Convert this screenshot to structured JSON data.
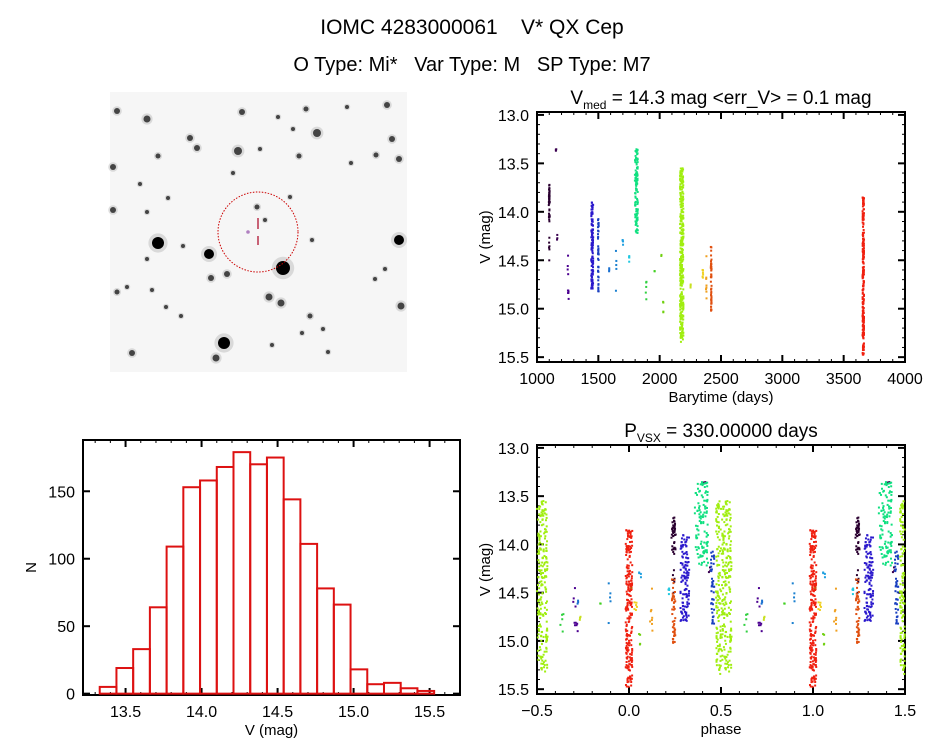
{
  "header": {
    "title": "IOMC 4283000061    V* QX Cep",
    "subtitle": "O Type: Mi*   Var Type: M   SP Type: M7"
  },
  "chart_data": [
    {
      "id": "histogram",
      "type": "bar",
      "title": "",
      "xlabel": "V (mag)",
      "ylabel": "N",
      "bin_start": 13.33,
      "bin_width": 0.11,
      "values": [
        5,
        19,
        33,
        64,
        109,
        153,
        158,
        168,
        179,
        170,
        175,
        144,
        111,
        78,
        66,
        18,
        7,
        8,
        4,
        2
      ],
      "xlim": [
        13.22,
        15.7
      ],
      "ylim": [
        -1,
        188
      ],
      "xticks": [
        {
          "v": 13.5,
          "label": "13.5"
        },
        {
          "v": 14.0,
          "label": "14.0"
        },
        {
          "v": 14.5,
          "label": "14.5"
        },
        {
          "v": 15.0,
          "label": "15.0"
        },
        {
          "v": 15.5,
          "label": "15.5"
        }
      ],
      "yticks": [
        {
          "v": 0,
          "label": "0"
        },
        {
          "v": 50,
          "label": "50"
        },
        {
          "v": 100,
          "label": "100"
        },
        {
          "v": 150,
          "label": "150"
        }
      ],
      "bar_color": "#dd1111"
    },
    {
      "id": "lightcurve",
      "type": "scatter",
      "title_main": "V",
      "title_sub": "med",
      "title_rest": " = 14.3 mag <err_V> = 0.1 mag",
      "xlabel": "Barytime (days)",
      "ylabel": "V (mag)",
      "xlim": [
        1000,
        4000
      ],
      "ylim": [
        15.55,
        12.97
      ],
      "xticks": [
        {
          "v": 1000,
          "label": "1000"
        },
        {
          "v": 1500,
          "label": "1500"
        },
        {
          "v": 2000,
          "label": "2000"
        },
        {
          "v": 2500,
          "label": "2500"
        },
        {
          "v": 3000,
          "label": "3000"
        },
        {
          "v": 3500,
          "label": "3500"
        },
        {
          "v": 4000,
          "label": "4000"
        }
      ],
      "yticks": [
        {
          "v": 13.0,
          "label": "13.0"
        },
        {
          "v": 13.5,
          "label": "13.5"
        },
        {
          "v": 14.0,
          "label": "14.0"
        },
        {
          "v": 14.5,
          "label": "14.5"
        },
        {
          "v": 15.0,
          "label": "15.0"
        },
        {
          "v": 15.5,
          "label": "15.5"
        }
      ],
      "clusters": [
        {
          "t": 1100,
          "dt": 4,
          "mag": [
            13.72,
            14.1
          ],
          "n": 40,
          "color": "#2a0030"
        },
        {
          "t": 1100,
          "dt": 2,
          "mag": [
            14.1,
            14.52
          ],
          "n": 6,
          "color": "#2a0030"
        },
        {
          "t": 1155,
          "dt": 2,
          "mag": [
            13.33,
            13.38
          ],
          "n": 3,
          "color": "#3a0050"
        },
        {
          "t": 1165,
          "dt": 2,
          "mag": [
            14.1,
            14.3
          ],
          "n": 3,
          "color": "#3a0050"
        },
        {
          "t": 1255,
          "dt": 5,
          "mag": [
            14.45,
            14.9
          ],
          "n": 10,
          "color": "#4b0090"
        },
        {
          "t": 1450,
          "dt": 8,
          "mag": [
            13.9,
            14.8
          ],
          "n": 120,
          "color": "#2a18cc"
        },
        {
          "t": 1500,
          "dt": 3,
          "mag": [
            14.05,
            14.85
          ],
          "n": 40,
          "color": "#1a40c0"
        },
        {
          "t": 1590,
          "dt": 3,
          "mag": [
            14.58,
            14.62
          ],
          "n": 3,
          "color": "#1a70d0"
        },
        {
          "t": 1645,
          "dt": 2,
          "mag": [
            14.4,
            14.9
          ],
          "n": 5,
          "color": "#1a80d0"
        },
        {
          "t": 1700,
          "dt": 3,
          "mag": [
            14.22,
            14.4
          ],
          "n": 4,
          "color": "#20a0e0"
        },
        {
          "t": 1750,
          "dt": 4,
          "mag": [
            14.45,
            14.52
          ],
          "n": 4,
          "color": "#20c8e0"
        },
        {
          "t": 1810,
          "dt": 12,
          "mag": [
            13.35,
            14.22
          ],
          "n": 110,
          "color": "#10e080"
        },
        {
          "t": 1890,
          "dt": 3,
          "mag": [
            14.72,
            14.96
          ],
          "n": 5,
          "color": "#30d040"
        },
        {
          "t": 1960,
          "dt": 2,
          "mag": [
            14.58,
            14.62
          ],
          "n": 2,
          "color": "#40d020"
        },
        {
          "t": 2015,
          "dt": 2,
          "mag": [
            14.44,
            14.47
          ],
          "n": 2,
          "color": "#70d010"
        },
        {
          "t": 2030,
          "dt": 2,
          "mag": [
            14.88,
            15.1
          ],
          "n": 4,
          "color": "#70d010"
        },
        {
          "t": 2180,
          "dt": 14,
          "mag": [
            13.55,
            15.35
          ],
          "n": 320,
          "color": "#a0ee10"
        },
        {
          "t": 2250,
          "dt": 3,
          "mag": [
            14.74,
            14.8
          ],
          "n": 3,
          "color": "#c8e020"
        },
        {
          "t": 2350,
          "dt": 6,
          "mag": [
            14.6,
            14.72
          ],
          "n": 6,
          "color": "#f0d020"
        },
        {
          "t": 2380,
          "dt": 3,
          "mag": [
            14.45,
            14.95
          ],
          "n": 8,
          "color": "#f0a020"
        },
        {
          "t": 2420,
          "dt": 3,
          "mag": [
            14.35,
            15.08
          ],
          "n": 45,
          "color": "#e05010"
        },
        {
          "t": 3660,
          "dt": 6,
          "mag": [
            13.85,
            15.48
          ],
          "n": 220,
          "color": "#f02010"
        }
      ]
    },
    {
      "id": "phased",
      "type": "scatter",
      "title_main": "P",
      "title_sub": "VSX",
      "title_rest": " = 330.00000 days",
      "period_days": 330.0,
      "epoch_days": 3660,
      "xlabel": "phase",
      "ylabel": "V (mag)",
      "xlim": [
        -0.5,
        1.5
      ],
      "ylim": [
        15.55,
        12.97
      ],
      "xticks": [
        {
          "v": -0.5,
          "label": "−0.5"
        },
        {
          "v": 0.0,
          "label": "0.0"
        },
        {
          "v": 0.5,
          "label": "0.5"
        },
        {
          "v": 1.0,
          "label": "1.0"
        },
        {
          "v": 1.5,
          "label": "1.5"
        }
      ],
      "yticks": [
        {
          "v": 13.0,
          "label": "13.0"
        },
        {
          "v": 13.5,
          "label": "13.5"
        },
        {
          "v": 14.0,
          "label": "14.0"
        },
        {
          "v": 14.5,
          "label": "14.5"
        },
        {
          "v": 15.0,
          "label": "15.0"
        },
        {
          "v": 15.5,
          "label": "15.5"
        }
      ]
    }
  ],
  "finder_chart": {
    "circle_color": "#cc0000",
    "marker_color": "#aa0022"
  }
}
